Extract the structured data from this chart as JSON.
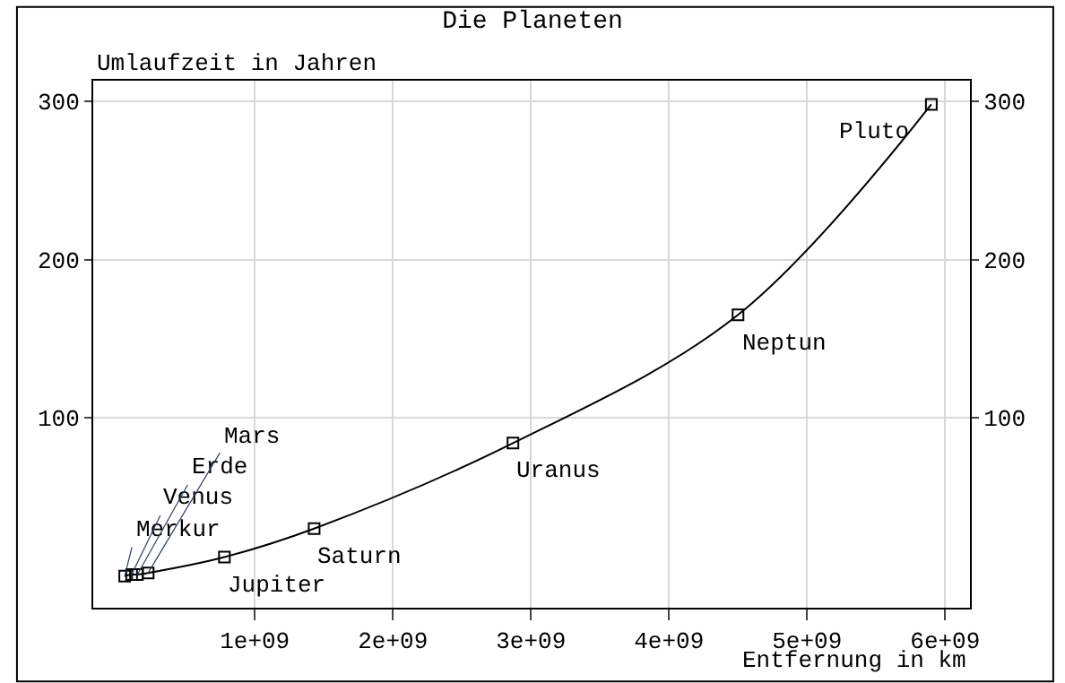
{
  "chart_data": {
    "type": "line",
    "title": "Die Planeten",
    "xlabel": "Entfernung in km",
    "ylabel": "Umlaufzeit in Jahren",
    "x": [
      58000000,
      108000000,
      150000000,
      228000000,
      780000000,
      1430000000,
      2870000000,
      4500000000,
      5900000000
    ],
    "series": [
      {
        "color": "#000000",
        "values": [
          0,
          1,
          1,
          2,
          12,
          30,
          84,
          165,
          298
        ]
      }
    ],
    "annotations": [
      {
        "text": "Merkur",
        "x": 58000000,
        "y": 0
      },
      {
        "text": "Venus",
        "x": 108000000,
        "y": 1
      },
      {
        "text": "Erde",
        "x": 150000000,
        "y": 1
      },
      {
        "text": "Mars",
        "x": 228000000,
        "y": 2
      },
      {
        "text": "Jupiter",
        "x": 780000000,
        "y": 12
      },
      {
        "text": "Saturn",
        "x": 1430000000,
        "y": 30
      },
      {
        "text": "Uranus",
        "x": 2870000000,
        "y": 84
      },
      {
        "text": "Neptun",
        "x": 4500000000,
        "y": 165
      },
      {
        "text": "Pluto",
        "x": 5900000000,
        "y": 298
      }
    ],
    "xlim": [
      -170000000,
      6180000000
    ],
    "xticks": [
      {
        "value": 1000000000,
        "label": "1e+09"
      },
      {
        "value": 2000000000,
        "label": "2e+09"
      },
      {
        "value": 3000000000,
        "label": "3e+09"
      },
      {
        "value": 4000000000,
        "label": "4e+09"
      },
      {
        "value": 5000000000,
        "label": "5e+09"
      },
      {
        "value": 6000000000,
        "label": "6e+09"
      }
    ],
    "ylim": [
      -20,
      313
    ],
    "yticks": [
      100,
      200,
      300
    ],
    "y2lim": [
      -20,
      313
    ],
    "y2ticks": [
      100,
      200,
      300
    ],
    "grid": true,
    "marker": "square",
    "line_style": "solid",
    "legend": false
  }
}
